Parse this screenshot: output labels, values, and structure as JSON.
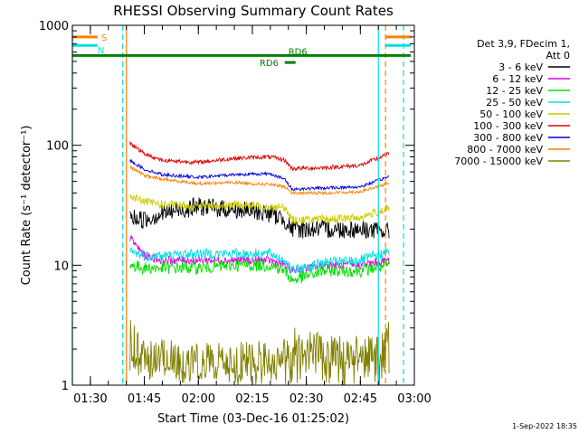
{
  "chart_data": {
    "type": "line",
    "title": "RHESSI Observing Summary Count Rates",
    "xlabel": "Start Time (03-Dec-16 01:25:02)",
    "ylabel": "Count Rate (s⁻¹ detector⁻¹)",
    "y_scale": "log",
    "ylim": [
      1,
      1000
    ],
    "xlim": [
      "01:25",
      "03:00"
    ],
    "x_ticks": [
      "01:30",
      "01:45",
      "02:00",
      "02:15",
      "02:30",
      "02:45",
      "03:00"
    ],
    "y_ticks": [
      "1",
      "10",
      "100",
      "1000"
    ],
    "legend_header": [
      "Det 3,9, FDecim 1,",
      "Att 0"
    ],
    "legend_position": "right",
    "footer_date": "1-Sep-2022 18:35",
    "annotations": [
      "S",
      "N",
      "RD6",
      "RD6"
    ],
    "data_start": "01:41",
    "data_end": "02:53",
    "series": [
      {
        "name": "3 - 6 keV",
        "color": "#000000",
        "anchors": [
          [
            "01:41",
            25
          ],
          [
            "01:45",
            24
          ],
          [
            "01:50",
            27
          ],
          [
            "02:00",
            31
          ],
          [
            "02:10",
            29
          ],
          [
            "02:20",
            27
          ],
          [
            "02:24",
            24
          ],
          [
            "02:26",
            20
          ],
          [
            "02:35",
            20
          ],
          [
            "02:45",
            20
          ],
          [
            "02:53",
            19
          ]
        ]
      },
      {
        "name": "6 - 12 keV",
        "color": "#e000e0",
        "anchors": [
          [
            "01:41",
            17
          ],
          [
            "01:45",
            12
          ],
          [
            "01:50",
            11
          ],
          [
            "02:00",
            11
          ],
          [
            "02:10",
            11
          ],
          [
            "02:20",
            11
          ],
          [
            "02:24",
            10
          ],
          [
            "02:26",
            9
          ],
          [
            "02:35",
            10
          ],
          [
            "02:45",
            10
          ],
          [
            "02:53",
            11
          ]
        ]
      },
      {
        "name": "12 - 25 keV",
        "color": "#00e000",
        "anchors": [
          [
            "01:41",
            10
          ],
          [
            "01:45",
            9.5
          ],
          [
            "01:50",
            9.5
          ],
          [
            "02:00",
            9.5
          ],
          [
            "02:10",
            10
          ],
          [
            "02:20",
            10
          ],
          [
            "02:24",
            9
          ],
          [
            "02:26",
            7.5
          ],
          [
            "02:35",
            9
          ],
          [
            "02:45",
            9
          ],
          [
            "02:53",
            10
          ]
        ]
      },
      {
        "name": "25 - 50 keV",
        "color": "#00e0e0",
        "anchors": [
          [
            "01:41",
            13
          ],
          [
            "01:45",
            12
          ],
          [
            "01:50",
            12
          ],
          [
            "02:00",
            12.5
          ],
          [
            "02:10",
            12.5
          ],
          [
            "02:20",
            12.5
          ],
          [
            "02:24",
            11
          ],
          [
            "02:26",
            9
          ],
          [
            "02:35",
            10.5
          ],
          [
            "02:45",
            11
          ],
          [
            "02:53",
            13
          ]
        ]
      },
      {
        "name": "50 - 100 keV",
        "color": "#cccc00",
        "anchors": [
          [
            "01:41",
            38
          ],
          [
            "01:45",
            34
          ],
          [
            "01:50",
            32
          ],
          [
            "02:00",
            31
          ],
          [
            "02:10",
            32
          ],
          [
            "02:20",
            31
          ],
          [
            "02:24",
            30
          ],
          [
            "02:26",
            24
          ],
          [
            "02:35",
            24
          ],
          [
            "02:45",
            25
          ],
          [
            "02:53",
            30
          ]
        ]
      },
      {
        "name": "100 - 300 keV",
        "color": "#e00000",
        "anchors": [
          [
            "01:41",
            105
          ],
          [
            "01:45",
            85
          ],
          [
            "01:50",
            75
          ],
          [
            "02:00",
            72
          ],
          [
            "02:10",
            78
          ],
          [
            "02:20",
            80
          ],
          [
            "02:24",
            75
          ],
          [
            "02:26",
            64
          ],
          [
            "02:35",
            65
          ],
          [
            "02:45",
            68
          ],
          [
            "02:53",
            85
          ]
        ]
      },
      {
        "name": "300 - 800 keV",
        "color": "#0000e0",
        "anchors": [
          [
            "01:41",
            75
          ],
          [
            "01:45",
            63
          ],
          [
            "01:50",
            57
          ],
          [
            "02:00",
            54
          ],
          [
            "02:10",
            57
          ],
          [
            "02:20",
            58
          ],
          [
            "02:24",
            52
          ],
          [
            "02:26",
            43
          ],
          [
            "02:35",
            44
          ],
          [
            "02:45",
            45
          ],
          [
            "02:53",
            55
          ]
        ]
      },
      {
        "name": "800 - 7000 keV",
        "color": "#ff8000",
        "anchors": [
          [
            "01:41",
            66
          ],
          [
            "01:45",
            56
          ],
          [
            "01:50",
            52
          ],
          [
            "02:00",
            48
          ],
          [
            "02:10",
            49
          ],
          [
            "02:20",
            47
          ],
          [
            "02:24",
            45
          ],
          [
            "02:26",
            40
          ],
          [
            "02:35",
            40
          ],
          [
            "02:45",
            41
          ],
          [
            "02:53",
            48
          ]
        ]
      },
      {
        "name": "7000 - 15000 keV",
        "color": "#808000",
        "anchors": [
          [
            "01:41",
            2.5
          ],
          [
            "01:45",
            2.0
          ],
          [
            "01:50",
            1.8
          ],
          [
            "02:00",
            1.6
          ],
          [
            "02:10",
            1.6
          ],
          [
            "02:20",
            1.7
          ],
          [
            "02:24",
            1.8
          ],
          [
            "02:26",
            2.2
          ],
          [
            "02:35",
            2.0
          ],
          [
            "02:45",
            1.8
          ],
          [
            "02:53",
            2.5
          ]
        ]
      }
    ],
    "markers": [
      {
        "type": "S",
        "color": "#ff8000",
        "times": [
          "01:40",
          "02:52"
        ]
      },
      {
        "type": "N",
        "color": "#00e0e0",
        "times": [
          "01:25",
          "01:39",
          "02:50",
          "02:57"
        ]
      }
    ],
    "bars": [
      {
        "label": "S",
        "color": "#ff8000",
        "value": 800,
        "segments": [
          [
            "01:25",
            "01:32"
          ],
          [
            "02:52",
            "02:59"
          ]
        ]
      },
      {
        "label": "N",
        "color": "#00e0e0",
        "value": 680,
        "segments": [
          [
            "01:25",
            "01:32"
          ],
          [
            "02:52",
            "02:59"
          ]
        ]
      },
      {
        "label": "RD6",
        "color": "#008000",
        "value": 560,
        "segments": [
          [
            "01:25",
            "02:59"
          ]
        ]
      },
      {
        "label": "RD6",
        "color": "#008000",
        "value": 490,
        "segments": [
          [
            "02:24",
            "02:27"
          ]
        ]
      }
    ]
  }
}
